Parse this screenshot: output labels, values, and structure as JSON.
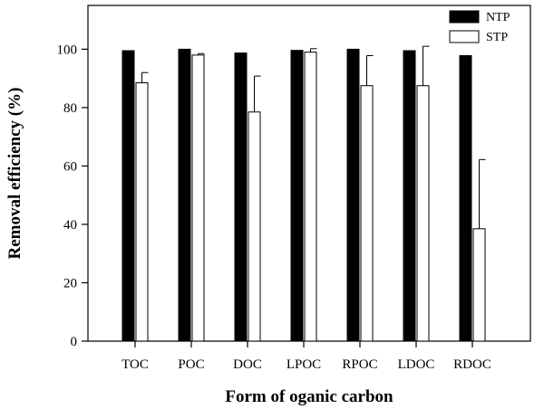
{
  "chart_data": {
    "type": "bar",
    "title": "",
    "xlabel": "Form of oganic carbon",
    "ylabel": "Removal efficiency (%)",
    "ylim": [
      0,
      115
    ],
    "yticks": [
      0,
      20,
      40,
      60,
      80,
      100
    ],
    "categories": [
      "TOC",
      "POC",
      "DOC",
      "LPOC",
      "RPOC",
      "LDOC",
      "RDOC"
    ],
    "legend_position": "top-right",
    "grid": false,
    "series": [
      {
        "name": "NTP",
        "fill": "#000000",
        "values": [
          99.5,
          100,
          98.7,
          99.6,
          100,
          99.5,
          97.8
        ],
        "errors": [
          0,
          0,
          0,
          0,
          0,
          0,
          0
        ]
      },
      {
        "name": "STP",
        "fill": "#ffffff",
        "values": [
          88.5,
          98,
          78.5,
          99,
          87.5,
          87.5,
          38.5
        ],
        "errors": [
          3.5,
          0.5,
          12.3,
          1.2,
          10.3,
          13.5,
          23.7
        ]
      }
    ]
  }
}
